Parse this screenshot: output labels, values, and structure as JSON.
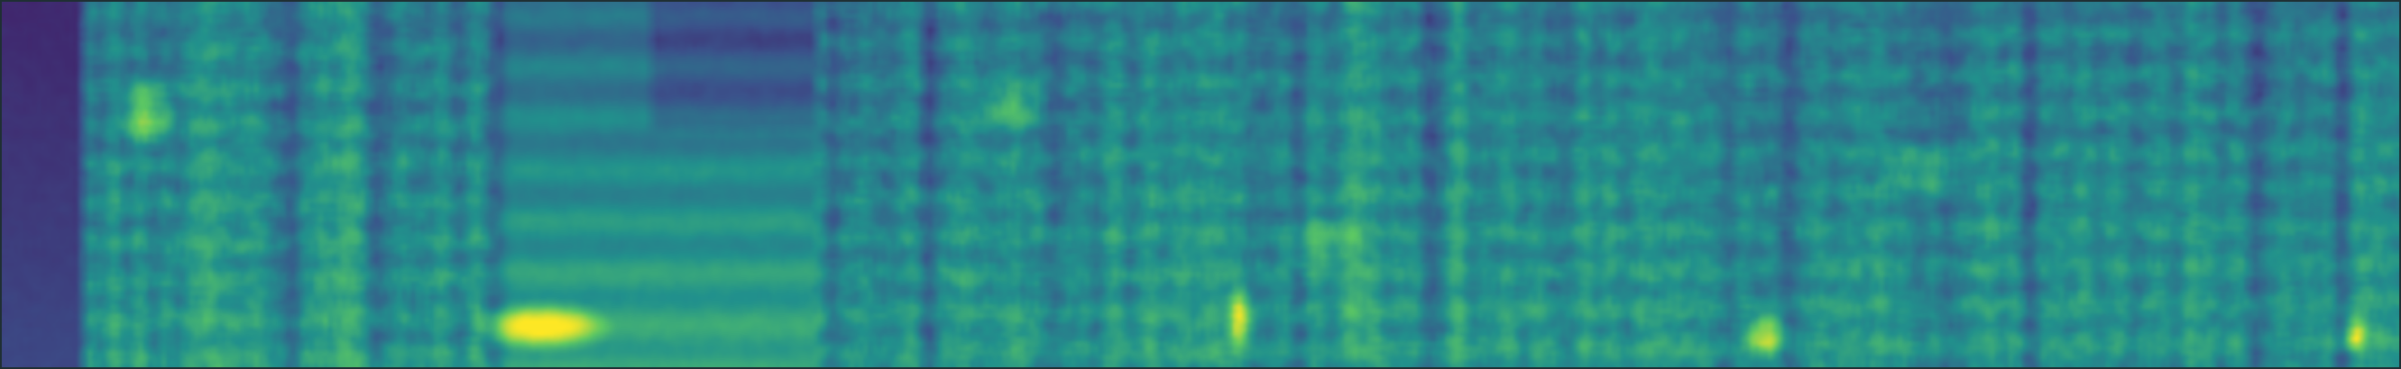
{
  "image": {
    "kind": "mel-spectrogram",
    "colormap": "viridis",
    "colormap_stops": [
      "#440154",
      "#3b528b",
      "#21918c",
      "#5ec962",
      "#fde725"
    ],
    "border_color": "#1f2f33"
  }
}
